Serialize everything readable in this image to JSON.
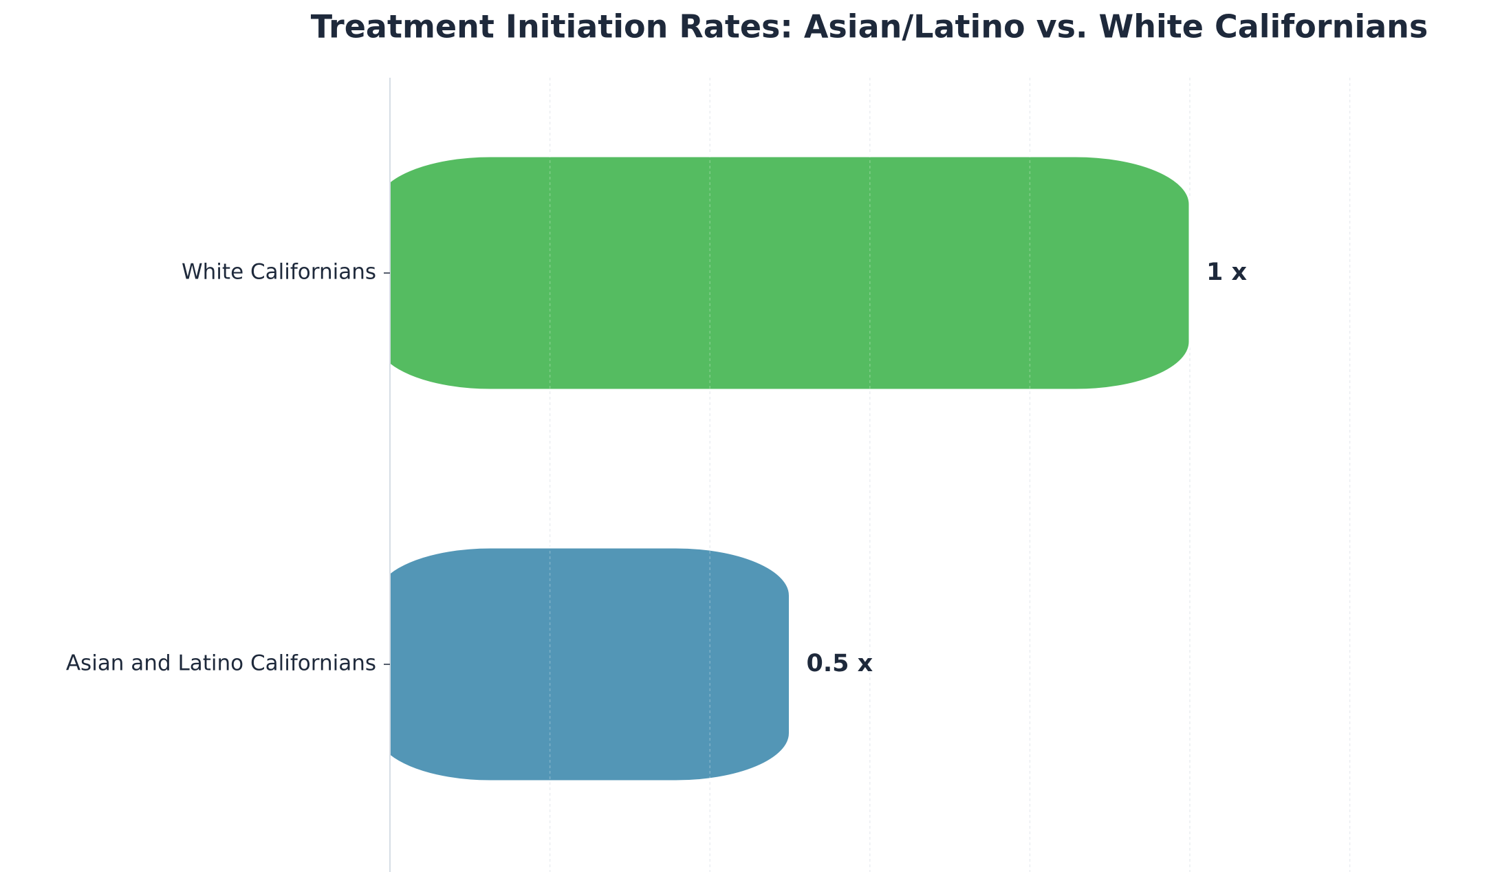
{
  "chart_data": {
    "type": "barh",
    "title": "Treatment Initiation Rates: Asian/Latino vs. White Californians",
    "categories": [
      "White Californians",
      "Asian and Latino Californians"
    ],
    "values": [
      1,
      0.5
    ],
    "value_labels": [
      "1 x",
      "0.5 x"
    ],
    "colors": [
      "#55bc61",
      "#5396b6"
    ],
    "xlim": [
      0,
      1.3
    ],
    "xticks": [
      0,
      0.2,
      0.4,
      0.6,
      0.8,
      1.0,
      1.2
    ],
    "grid": true
  }
}
